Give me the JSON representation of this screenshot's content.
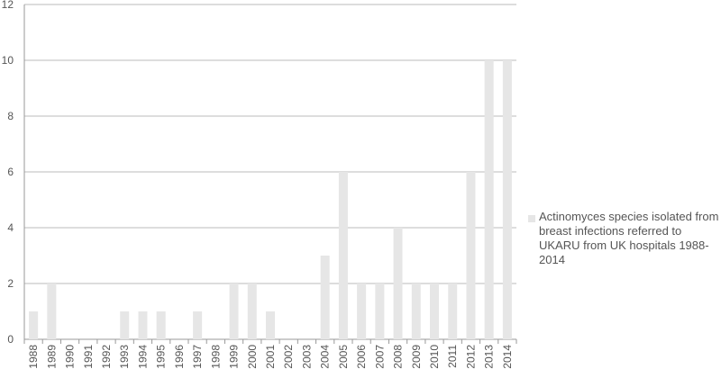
{
  "chart_data": {
    "type": "bar",
    "categories": [
      "1988",
      "1989",
      "1990",
      "1991",
      "1992",
      "1993",
      "1994",
      "1995",
      "1996",
      "1997",
      "1998",
      "1999",
      "2000",
      "2001",
      "2002",
      "2003",
      "2004",
      "2005",
      "2006",
      "2007",
      "2008",
      "2009",
      "2010",
      "2011",
      "2012",
      "2013",
      "2014"
    ],
    "series": [
      {
        "name": "Actinomyces species isolated from breast infections referred to UKARU from UK hospitals 1988-2014",
        "color": "#e6e6e6",
        "values": [
          1,
          2,
          0,
          0,
          0,
          1,
          1,
          1,
          0,
          1,
          0,
          2,
          2,
          1,
          0,
          0,
          3,
          6,
          2,
          2,
          4,
          2,
          2,
          2,
          6,
          10,
          10
        ]
      }
    ],
    "ylim": [
      0,
      12
    ],
    "yticks": [
      0,
      2,
      4,
      6,
      8,
      10,
      12
    ],
    "grid": true,
    "legend": "right"
  }
}
